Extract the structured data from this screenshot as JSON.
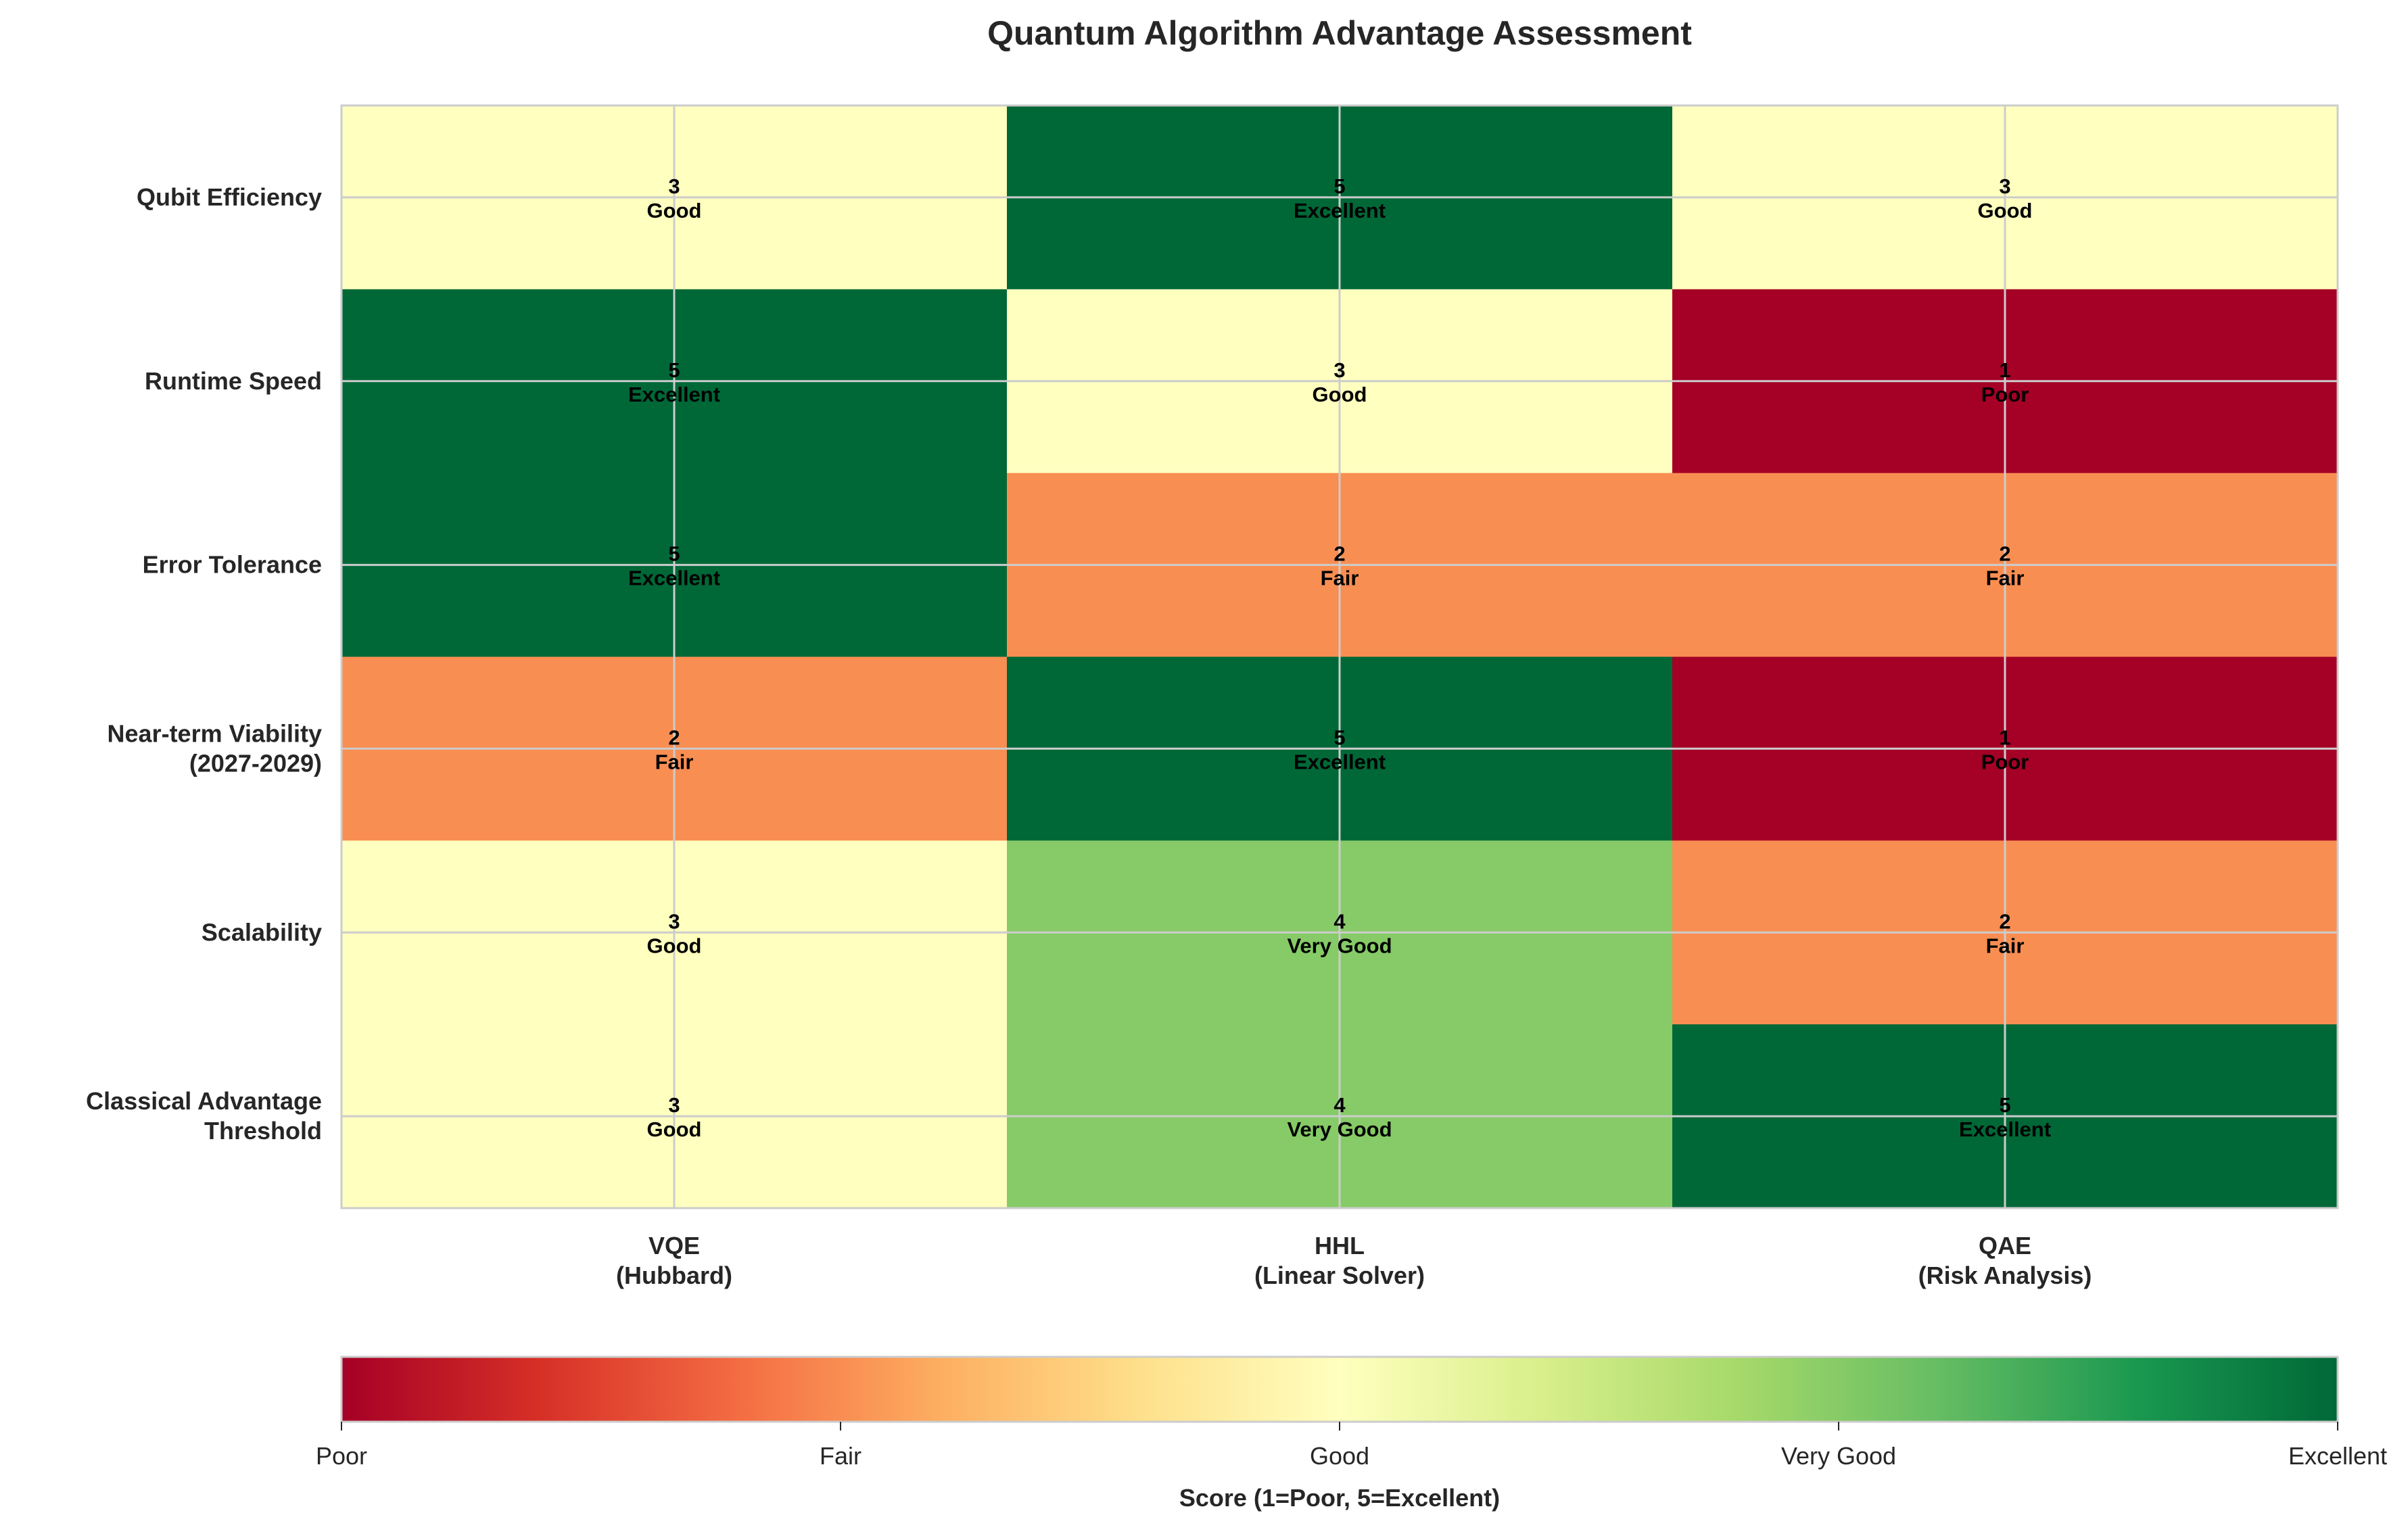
{
  "chart_data": {
    "type": "heatmap",
    "title": "Quantum Algorithm Advantage Assessment",
    "columns": [
      "VQE\n(Hubbard)",
      "HHL\n(Linear Solver)",
      "QAE\n(Risk Analysis)"
    ],
    "rows": [
      "Qubit Efficiency",
      "Runtime Speed",
      "Error Tolerance",
      "Near-term Viability\n(2027-2029)",
      "Scalability",
      "Classical Advantage\nThreshold"
    ],
    "values": [
      [
        3,
        5,
        3
      ],
      [
        5,
        3,
        1
      ],
      [
        5,
        2,
        2
      ],
      [
        2,
        5,
        1
      ],
      [
        3,
        4,
        2
      ],
      [
        3,
        4,
        5
      ]
    ],
    "score_labels": {
      "1": "Poor",
      "2": "Fair",
      "3": "Good",
      "4": "Very Good",
      "5": "Excellent"
    },
    "colormap": "RdYlGn",
    "colormap_stops": [
      "#a50026",
      "#d73027",
      "#f46d43",
      "#fdae61",
      "#fee08b",
      "#ffffbf",
      "#d9ef8b",
      "#a6d96a",
      "#66bd63",
      "#1a9850",
      "#006837"
    ],
    "value_range": [
      1,
      5
    ],
    "grid": true,
    "colorbar": {
      "orientation": "horizontal",
      "placement": "bottom",
      "ticks": [
        1,
        2,
        3,
        4,
        5
      ],
      "tick_labels": [
        "Poor",
        "Fair",
        "Good",
        "Very Good",
        "Excellent"
      ],
      "label": "Score (1=Poor, 5=Excellent)"
    }
  }
}
